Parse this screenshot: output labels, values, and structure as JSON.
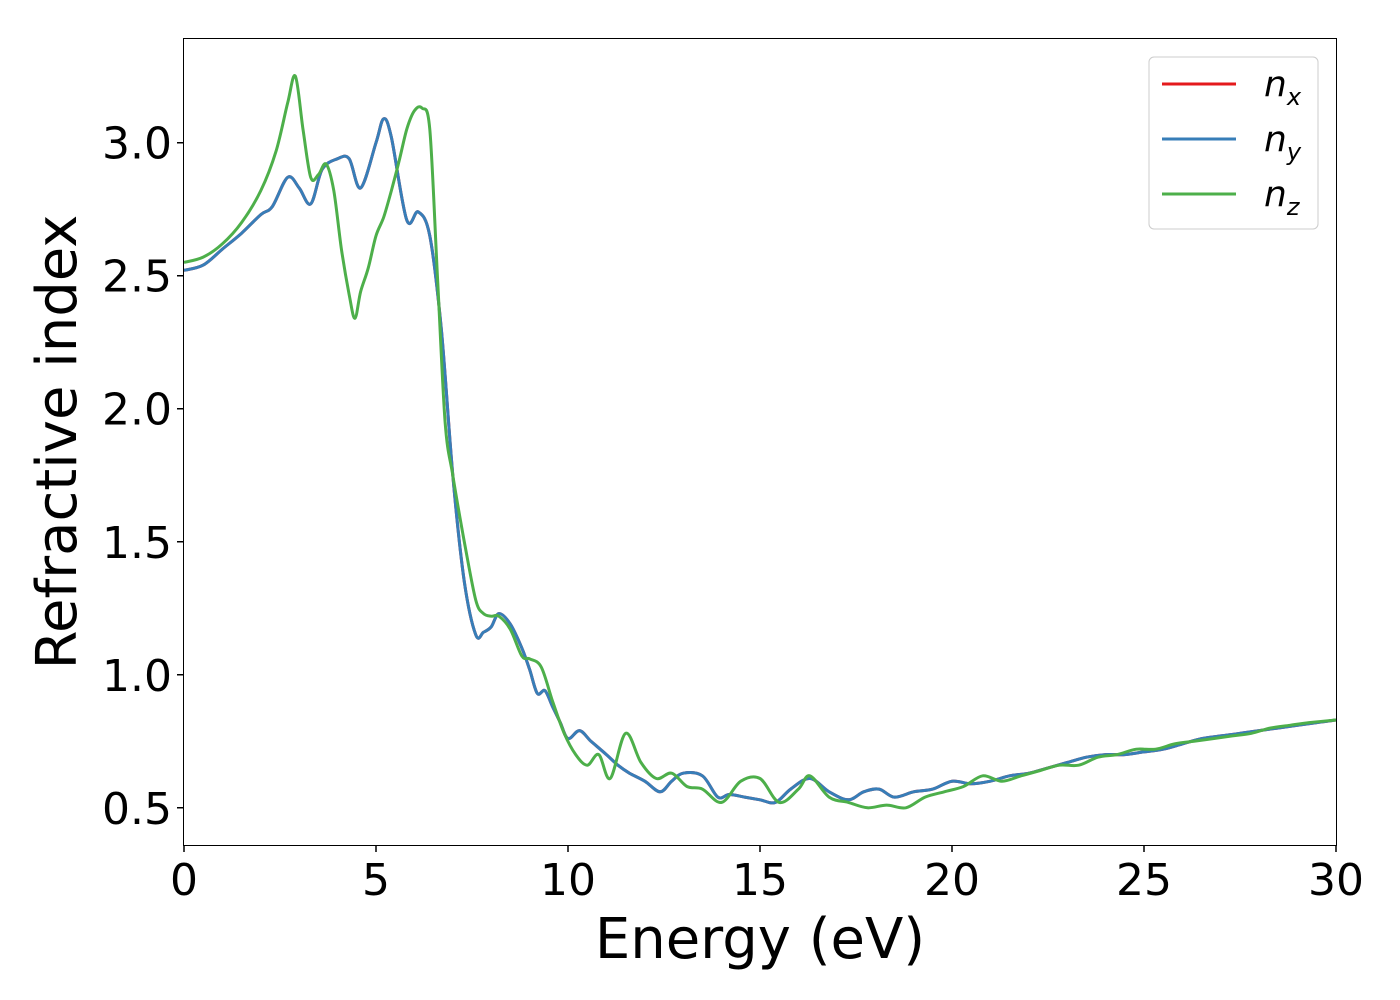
{
  "chart_data": {
    "type": "line",
    "xlabel": "Energy (eV)",
    "ylabel": "Refractive index",
    "xlim": [
      0,
      30
    ],
    "ylim": [
      0.36,
      3.39
    ],
    "xticks": [
      0,
      5,
      10,
      15,
      20,
      25,
      30
    ],
    "xtick_labels": [
      "0",
      "5",
      "10",
      "15",
      "20",
      "25",
      "30"
    ],
    "yticks": [
      0.5,
      1.0,
      1.5,
      2.0,
      2.5,
      3.0
    ],
    "ytick_labels": [
      "0.5",
      "1.0",
      "1.5",
      "2.0",
      "2.5",
      "3.0"
    ],
    "grid": false,
    "legend_position": "top-right",
    "series": [
      {
        "name": "n",
        "subscript": "x",
        "color": "#e41a1c",
        "x": [
          0,
          0.5,
          1.0,
          1.5,
          2.0,
          2.3,
          2.7,
          3.0,
          3.3,
          3.6,
          4.0,
          4.3,
          4.6,
          5.0,
          5.2,
          5.4,
          5.8,
          6.1,
          6.4,
          6.7,
          7.0,
          7.3,
          7.6,
          7.8,
          8.0,
          8.2,
          8.5,
          8.8,
          9.0,
          9.2,
          9.4,
          9.6,
          9.8,
          10.0,
          10.3,
          10.6,
          11.0,
          11.3,
          11.6,
          12.0,
          12.4,
          12.7,
          13.0,
          13.5,
          13.9,
          14.2,
          14.6,
          15.0,
          15.4,
          15.8,
          16.3,
          16.8,
          17.3,
          17.7,
          18.1,
          18.5,
          19.0,
          19.5,
          20.0,
          20.5,
          21.0,
          21.5,
          22.0,
          22.5,
          23.0,
          23.5,
          24.0,
          24.5,
          25.0,
          25.5,
          26.0,
          26.5,
          27.0,
          27.5,
          28.0,
          28.5,
          29.0,
          29.5,
          30.0
        ],
        "y": [
          2.52,
          2.54,
          2.6,
          2.66,
          2.73,
          2.76,
          2.87,
          2.83,
          2.77,
          2.9,
          2.94,
          2.94,
          2.83,
          3.0,
          3.09,
          3.02,
          2.71,
          2.74,
          2.65,
          2.3,
          1.75,
          1.35,
          1.15,
          1.16,
          1.18,
          1.23,
          1.19,
          1.1,
          1.02,
          0.93,
          0.94,
          0.88,
          0.82,
          0.76,
          0.79,
          0.75,
          0.7,
          0.66,
          0.63,
          0.6,
          0.56,
          0.6,
          0.63,
          0.62,
          0.54,
          0.55,
          0.54,
          0.53,
          0.52,
          0.57,
          0.61,
          0.56,
          0.53,
          0.56,
          0.57,
          0.54,
          0.56,
          0.57,
          0.6,
          0.59,
          0.6,
          0.62,
          0.63,
          0.65,
          0.67,
          0.69,
          0.7,
          0.7,
          0.71,
          0.72,
          0.74,
          0.76,
          0.77,
          0.78,
          0.79,
          0.8,
          0.81,
          0.82,
          0.83
        ]
      },
      {
        "name": "n",
        "subscript": "y",
        "color": "#377eb8",
        "x": [
          0,
          0.5,
          1.0,
          1.5,
          2.0,
          2.3,
          2.7,
          3.0,
          3.3,
          3.6,
          4.0,
          4.3,
          4.6,
          5.0,
          5.2,
          5.4,
          5.8,
          6.1,
          6.4,
          6.7,
          7.0,
          7.3,
          7.6,
          7.8,
          8.0,
          8.2,
          8.5,
          8.8,
          9.0,
          9.2,
          9.4,
          9.6,
          9.8,
          10.0,
          10.3,
          10.6,
          11.0,
          11.3,
          11.6,
          12.0,
          12.4,
          12.7,
          13.0,
          13.5,
          13.9,
          14.2,
          14.6,
          15.0,
          15.4,
          15.8,
          16.3,
          16.8,
          17.3,
          17.7,
          18.1,
          18.5,
          19.0,
          19.5,
          20.0,
          20.5,
          21.0,
          21.5,
          22.0,
          22.5,
          23.0,
          23.5,
          24.0,
          24.5,
          25.0,
          25.5,
          26.0,
          26.5,
          27.0,
          27.5,
          28.0,
          28.5,
          29.0,
          29.5,
          30.0
        ],
        "y": [
          2.52,
          2.54,
          2.6,
          2.66,
          2.73,
          2.76,
          2.87,
          2.83,
          2.77,
          2.9,
          2.94,
          2.94,
          2.83,
          3.0,
          3.09,
          3.02,
          2.71,
          2.74,
          2.65,
          2.3,
          1.75,
          1.35,
          1.15,
          1.16,
          1.18,
          1.23,
          1.19,
          1.1,
          1.02,
          0.93,
          0.94,
          0.88,
          0.82,
          0.76,
          0.79,
          0.75,
          0.7,
          0.66,
          0.63,
          0.6,
          0.56,
          0.6,
          0.63,
          0.62,
          0.54,
          0.55,
          0.54,
          0.53,
          0.52,
          0.57,
          0.61,
          0.56,
          0.53,
          0.56,
          0.57,
          0.54,
          0.56,
          0.57,
          0.6,
          0.59,
          0.6,
          0.62,
          0.63,
          0.65,
          0.67,
          0.69,
          0.7,
          0.7,
          0.71,
          0.72,
          0.74,
          0.76,
          0.77,
          0.78,
          0.79,
          0.8,
          0.81,
          0.82,
          0.83
        ]
      },
      {
        "name": "n",
        "subscript": "z",
        "color": "#4daf4a",
        "x": [
          0,
          0.5,
          1.0,
          1.5,
          2.0,
          2.4,
          2.7,
          2.9,
          3.1,
          3.3,
          3.5,
          3.7,
          3.9,
          4.1,
          4.3,
          4.45,
          4.6,
          4.8,
          5.0,
          5.2,
          5.4,
          5.6,
          5.8,
          6.0,
          6.2,
          6.4,
          6.6,
          6.8,
          7.0,
          7.3,
          7.6,
          7.8,
          8.0,
          8.2,
          8.5,
          8.8,
          9.0,
          9.3,
          9.6,
          9.9,
          10.2,
          10.5,
          10.8,
          11.1,
          11.5,
          11.9,
          12.3,
          12.7,
          13.1,
          13.5,
          14.0,
          14.5,
          15.0,
          15.5,
          16.0,
          16.3,
          16.8,
          17.3,
          17.8,
          18.3,
          18.8,
          19.3,
          19.8,
          20.3,
          20.8,
          21.3,
          21.8,
          22.3,
          22.8,
          23.3,
          23.8,
          24.3,
          24.8,
          25.3,
          25.8,
          26.3,
          26.8,
          27.3,
          27.8,
          28.3,
          28.8,
          29.3,
          30.0
        ],
        "y": [
          2.55,
          2.57,
          2.62,
          2.7,
          2.82,
          2.97,
          3.15,
          3.25,
          3.05,
          2.87,
          2.88,
          2.92,
          2.82,
          2.6,
          2.43,
          2.34,
          2.44,
          2.53,
          2.65,
          2.72,
          2.82,
          2.93,
          3.05,
          3.12,
          3.13,
          3.05,
          2.5,
          1.95,
          1.75,
          1.5,
          1.28,
          1.23,
          1.22,
          1.22,
          1.17,
          1.07,
          1.06,
          1.03,
          0.9,
          0.78,
          0.7,
          0.66,
          0.7,
          0.61,
          0.78,
          0.67,
          0.61,
          0.63,
          0.58,
          0.57,
          0.52,
          0.6,
          0.61,
          0.52,
          0.57,
          0.62,
          0.54,
          0.52,
          0.5,
          0.51,
          0.5,
          0.54,
          0.56,
          0.58,
          0.62,
          0.6,
          0.62,
          0.64,
          0.66,
          0.66,
          0.69,
          0.7,
          0.72,
          0.72,
          0.74,
          0.75,
          0.76,
          0.77,
          0.78,
          0.8,
          0.81,
          0.82,
          0.83
        ]
      }
    ]
  }
}
